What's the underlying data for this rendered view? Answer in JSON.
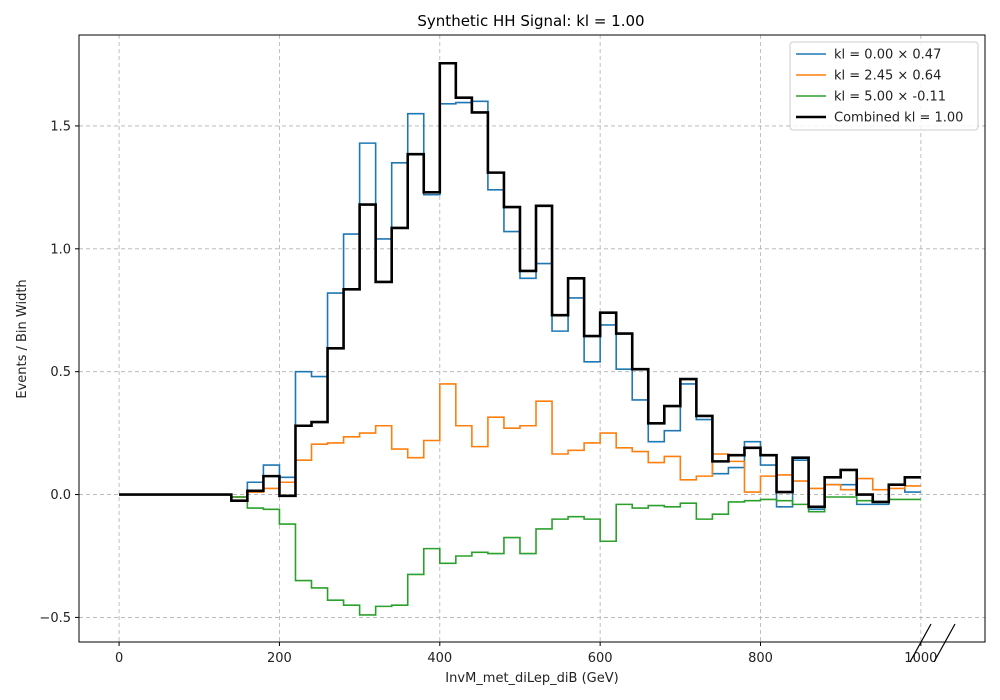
{
  "chart_data": {
    "type": "line",
    "title": "Synthetic HH Signal: kl = 1.00",
    "xlabel": "InvM_met_diLep_diB (GeV)",
    "ylabel": "Events / Bin Width",
    "xlim": [
      -50,
      1080
    ],
    "ylim": [
      -0.6,
      1.87
    ],
    "grid": true,
    "legend_position": "top-right",
    "x_ticks": [
      0,
      200,
      400,
      600,
      800,
      1000
    ],
    "x_tick_labels": [
      "0",
      "200",
      "400",
      "600",
      "800",
      "1000"
    ],
    "y_ticks": [
      -0.5,
      0.0,
      0.5,
      1.0,
      1.5
    ],
    "y_tick_labels": [
      "−0.5",
      "0.0",
      "0.5",
      "1.0",
      "1.5"
    ],
    "bin_edges": [
      0,
      20,
      40,
      60,
      80,
      100,
      120,
      140,
      160,
      180,
      200,
      220,
      240,
      260,
      280,
      300,
      320,
      340,
      360,
      380,
      400,
      420,
      440,
      460,
      480,
      500,
      520,
      540,
      560,
      580,
      600,
      620,
      640,
      660,
      680,
      700,
      720,
      740,
      760,
      780,
      800,
      820,
      840,
      860,
      880,
      900,
      920,
      940,
      960,
      980,
      1000
    ],
    "series": [
      {
        "name": "kl = 0.00 × 0.47",
        "color": "#1f77b4",
        "width": 1.6,
        "values": [
          0,
          0,
          0,
          0,
          0,
          0,
          0,
          -0.01,
          0.05,
          0.12,
          0.07,
          0.5,
          0.48,
          0.82,
          1.06,
          1.43,
          1.04,
          1.35,
          1.55,
          1.22,
          1.59,
          1.595,
          1.6,
          1.24,
          1.07,
          0.88,
          0.94,
          0.665,
          0.8,
          0.54,
          0.69,
          0.51,
          0.385,
          0.215,
          0.26,
          0.45,
          0.305,
          0.085,
          0.11,
          0.215,
          0.12,
          -0.05,
          0.14,
          -0.06,
          0.04,
          0.04,
          -0.04,
          -0.04,
          0.04,
          0.01
        ]
      },
      {
        "name": "kl = 2.45 × 0.64",
        "color": "#ff7f0e",
        "width": 1.6,
        "values": [
          0,
          0,
          0,
          0,
          0,
          0,
          0,
          -0.01,
          0.01,
          0.025,
          0.05,
          0.14,
          0.205,
          0.21,
          0.235,
          0.25,
          0.28,
          0.185,
          0.15,
          0.22,
          0.45,
          0.28,
          0.195,
          0.315,
          0.27,
          0.28,
          0.38,
          0.165,
          0.18,
          0.21,
          0.25,
          0.19,
          0.175,
          0.13,
          0.155,
          0.06,
          0.075,
          0.165,
          0.135,
          0.01,
          0.075,
          0.08,
          0.055,
          0.025,
          0.04,
          0.02,
          0.065,
          0.02,
          0.025,
          0.035
        ]
      },
      {
        "name": "kl = 5.00 × -0.11",
        "color": "#2ca02c",
        "width": 1.6,
        "values": [
          0,
          0,
          0,
          0,
          0,
          0,
          0,
          -0.01,
          -0.055,
          -0.06,
          -0.12,
          -0.35,
          -0.38,
          -0.43,
          -0.45,
          -0.49,
          -0.455,
          -0.45,
          -0.325,
          -0.22,
          -0.28,
          -0.25,
          -0.235,
          -0.24,
          -0.175,
          -0.24,
          -0.14,
          -0.1,
          -0.09,
          -0.1,
          -0.19,
          -0.04,
          -0.055,
          -0.045,
          -0.05,
          -0.035,
          -0.1,
          -0.08,
          -0.03,
          -0.025,
          -0.02,
          -0.025,
          -0.04,
          -0.07,
          -0.01,
          -0.01,
          -0.025,
          -0.03,
          -0.02,
          -0.02
        ]
      },
      {
        "name": "Combined kl = 1.00",
        "color": "#000000",
        "width": 2.6,
        "values": [
          0,
          0,
          0,
          0,
          0,
          0,
          0,
          -0.025,
          0.015,
          0.075,
          -0.005,
          0.28,
          0.295,
          0.595,
          0.835,
          1.18,
          0.865,
          1.085,
          1.385,
          1.23,
          1.755,
          1.615,
          1.555,
          1.31,
          1.17,
          0.91,
          1.175,
          0.73,
          0.88,
          0.645,
          0.74,
          0.655,
          0.51,
          0.29,
          0.36,
          0.47,
          0.32,
          0.135,
          0.16,
          0.19,
          0.16,
          0.01,
          0.15,
          -0.05,
          0.07,
          0.1,
          0.0,
          -0.03,
          0.04,
          0.07
        ]
      }
    ]
  }
}
